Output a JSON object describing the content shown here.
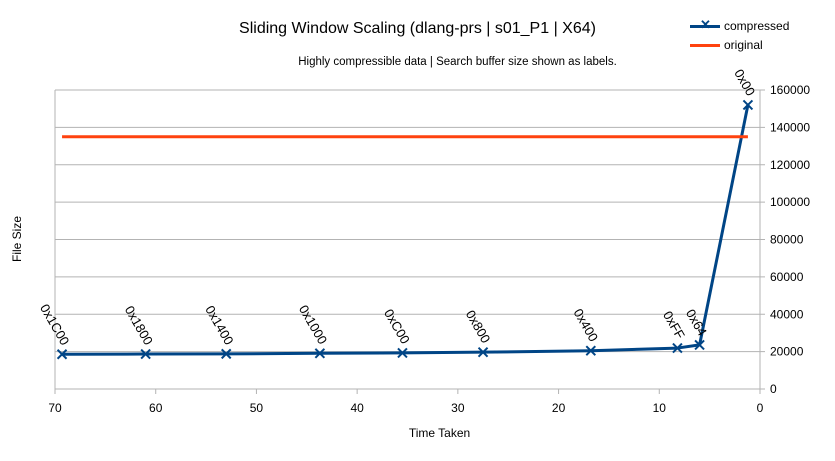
{
  "chart_data": {
    "type": "line",
    "title": "Sliding Window Scaling (dlang-prs | s01_P1 | X64)",
    "subtitle": "Highly compressible data | Search buffer size shown as labels.",
    "xlabel": "Time Taken",
    "ylabel": "File Size",
    "xlim": [
      70,
      0
    ],
    "ylim": [
      0,
      160000
    ],
    "x_reversed": true,
    "x_ticks": [
      "70",
      "60",
      "50",
      "40",
      "30",
      "20",
      "10",
      "0"
    ],
    "y_ticks": [
      "0",
      "20000",
      "40000",
      "60000",
      "80000",
      "100000",
      "120000",
      "140000",
      "160000"
    ],
    "grid": "horizontal",
    "legend_position": "top-right",
    "series": [
      {
        "name": "compressed",
        "color": "#004586",
        "marker": "x",
        "points": [
          {
            "x": 69.3,
            "y": 18600,
            "label": "0x1C00"
          },
          {
            "x": 61.0,
            "y": 18700,
            "label": "0x1800"
          },
          {
            "x": 53.0,
            "y": 18800,
            "label": "0x1400"
          },
          {
            "x": 43.7,
            "y": 19100,
            "label": "0x1000"
          },
          {
            "x": 35.5,
            "y": 19300,
            "label": "0xC00"
          },
          {
            "x": 27.5,
            "y": 19700,
            "label": "0x800"
          },
          {
            "x": 16.8,
            "y": 20500,
            "label": "0x400"
          },
          {
            "x": 8.2,
            "y": 21900,
            "label": "0xFF"
          },
          {
            "x": 6.0,
            "y": 23600,
            "label": "0x64"
          },
          {
            "x": 1.2,
            "y": 152000,
            "label": "0x00"
          }
        ]
      },
      {
        "name": "original",
        "color": "#ff420e",
        "points": [
          {
            "x": 69.3,
            "y": 135000
          },
          {
            "x": 1.2,
            "y": 135000
          }
        ]
      }
    ]
  }
}
